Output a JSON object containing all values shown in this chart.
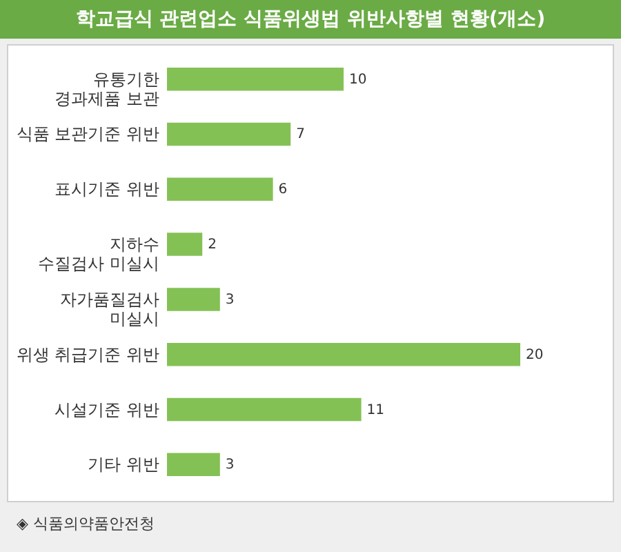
{
  "chart_data": {
    "type": "bar",
    "orientation": "horizontal",
    "title": "학교급식 관련업소 식품위생법 위반사항별 현황(개소)",
    "categories": [
      "유통기한\n경과제품 보관",
      "식품 보관기준 위반",
      "표시기준 위반",
      "지하수\n수질검사 미실시",
      "자가품질검사\n미실시",
      "위생 취급기준 위반",
      "시설기준 위반",
      "기타 위반"
    ],
    "values": [
      10,
      7,
      6,
      2,
      3,
      20,
      11,
      3
    ],
    "color": "#84c155",
    "data_labels": true,
    "annotations": [
      "◈ 식품의약품안전청"
    ]
  }
}
